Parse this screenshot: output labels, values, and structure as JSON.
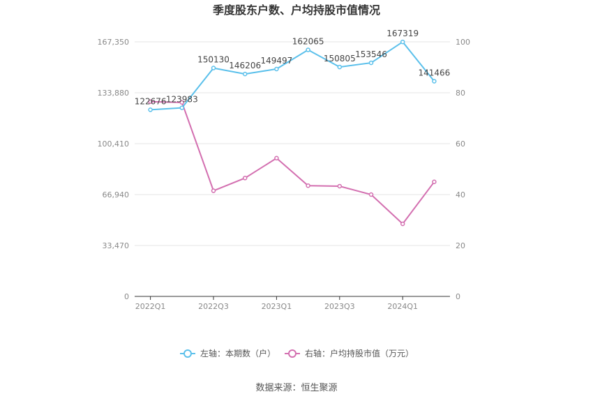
{
  "chart_data": {
    "type": "line",
    "title": "季度股东户数、户均持股市值情况",
    "categories": [
      "2022Q1",
      "2022Q2",
      "2022Q3",
      "2022Q4",
      "2023Q1",
      "2023Q2",
      "2023Q3",
      "2023Q4",
      "2024Q1",
      "2024Q2"
    ],
    "x_tick_labels": [
      "2022Q1",
      "",
      "2022Q3",
      "",
      "2023Q1",
      "",
      "2023Q3",
      "",
      "2024Q1",
      ""
    ],
    "left_axis": {
      "min": 0,
      "max": 167350,
      "ticks": [
        "0",
        "33,470",
        "66,940",
        "100,410",
        "133,880",
        "167,350"
      ],
      "tick_values": [
        0,
        33470,
        66940,
        100410,
        133880,
        167350
      ]
    },
    "right_axis": {
      "min": 0,
      "max": 100,
      "ticks": [
        "0",
        "20",
        "40",
        "60",
        "80",
        "100"
      ],
      "tick_values": [
        0,
        20,
        40,
        60,
        80,
        100
      ]
    },
    "series": [
      {
        "name": "左轴：本期数（户）",
        "axis": "left",
        "color": "#5bc0eb",
        "values": [
          122676,
          123983,
          150130,
          146206,
          149497,
          162065,
          150805,
          153546,
          167319,
          141466
        ],
        "labels": [
          "122676",
          "123983",
          "150130",
          "146206",
          "149497",
          "162065",
          "150805",
          "153546",
          "167319",
          "141466"
        ]
      },
      {
        "name": "右轴：户均持股市值（万元）",
        "axis": "right",
        "color": "#d36fb0",
        "values": [
          76.5,
          76.2,
          41.5,
          46.5,
          54.3,
          43.5,
          43.3,
          40.0,
          28.5,
          45.0
        ]
      }
    ],
    "grid": true,
    "legend_position": "bottom"
  },
  "source": "数据来源：恒生聚源"
}
